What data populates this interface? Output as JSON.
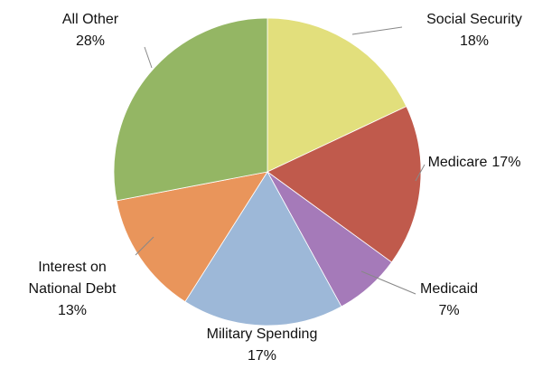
{
  "chart_data": {
    "type": "pie",
    "categories": [
      "Social Security",
      "Medicare",
      "Medicaid",
      "Military Spending",
      "Interest on National Debt",
      "All Other"
    ],
    "values": [
      18,
      17,
      7,
      17,
      13,
      28
    ],
    "value_labels": [
      "18%",
      "17%",
      "7%",
      "17%",
      "13%",
      "28%"
    ],
    "colors": [
      "#e2df7c",
      "#c05a4c",
      "#a57ab9",
      "#9db8d8",
      "#e9955b",
      "#94b664"
    ]
  }
}
